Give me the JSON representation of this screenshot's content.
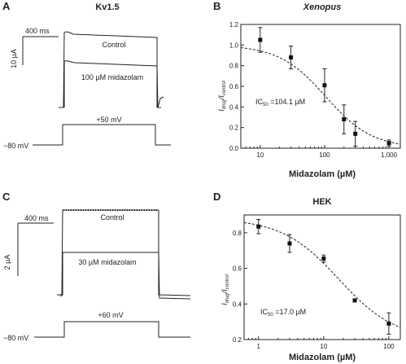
{
  "panels": {
    "A": {
      "letter": "A",
      "title": "Kv1.5",
      "time_scale": "400 ms",
      "current_scale": "10 µA",
      "trace_control": "Control",
      "trace_drug": "100 µM midazolam",
      "step_voltage": "+50 mV",
      "holding_voltage": "−80 mV"
    },
    "C": {
      "letter": "C",
      "time_scale": "400 ms",
      "current_scale": "2 µA",
      "trace_control": "Control",
      "trace_drug": "30 µM midazolam",
      "step_voltage": "+60 mV",
      "holding_voltage": "−80 mV"
    }
  },
  "chart_data": [
    {
      "panel": "B",
      "type": "scatter",
      "title": "Xenopus",
      "xlabel": "Midazolam (µM)",
      "ylabel_main": "I",
      "ylabel_sub1": "drug",
      "ylabel_sep": "/I",
      "ylabel_sub2": "control",
      "xscale": "log",
      "xlim": [
        5,
        1500
      ],
      "ylim": [
        0,
        1.2
      ],
      "xticks": [
        10,
        100,
        1000
      ],
      "xtick_labels": [
        "10",
        "100",
        "1,000"
      ],
      "yticks": [
        0.0,
        0.2,
        0.4,
        0.6,
        0.8,
        1.0,
        1.2
      ],
      "ytick_labels": [
        "0.0",
        "0.2",
        "0.4",
        "0.6",
        "0.8",
        "1.0",
        "1.2"
      ],
      "points": [
        {
          "x": 10,
          "y": 1.05,
          "err": 0.12
        },
        {
          "x": 30,
          "y": 0.88,
          "err": 0.11
        },
        {
          "x": 100,
          "y": 0.61,
          "err": 0.16
        },
        {
          "x": 200,
          "y": 0.28,
          "err": 0.14
        },
        {
          "x": 300,
          "y": 0.14,
          "err": 0.12
        },
        {
          "x": 1000,
          "y": 0.05,
          "err": 0.03
        }
      ],
      "fit": {
        "ic50": 104.1,
        "hill": 1.2
      },
      "annotation_main": "IC",
      "annotation_sub": "50",
      "annotation_rest": " =104.1 µM"
    },
    {
      "panel": "D",
      "type": "scatter",
      "title": "HEK",
      "xlabel": "Midazolam (µM)",
      "ylabel_main": "I",
      "ylabel_sub1": "drug",
      "ylabel_sep": "/I",
      "ylabel_sub2": "control",
      "xscale": "log",
      "xlim": [
        0.6,
        150
      ],
      "ylim": [
        0.2,
        0.9
      ],
      "xticks": [
        1,
        10,
        100
      ],
      "xtick_labels": [
        "1",
        "10",
        "100"
      ],
      "yticks": [
        0.2,
        0.4,
        0.6,
        0.8
      ],
      "ytick_labels": [
        "0.2",
        "0.4",
        "0.6",
        "0.8"
      ],
      "points": [
        {
          "x": 1,
          "y": 0.835,
          "err": 0.04
        },
        {
          "x": 3,
          "y": 0.74,
          "err": 0.05
        },
        {
          "x": 10,
          "y": 0.655,
          "err": 0.02
        },
        {
          "x": 30,
          "y": 0.42,
          "err": 0.008
        },
        {
          "x": 100,
          "y": 0.29,
          "err": 0.06
        }
      ],
      "fit": {
        "ic50": 17.0,
        "hill": 1.0,
        "bottom": 0.2,
        "top": 0.88
      },
      "annotation_main": "IC",
      "annotation_sub": "50",
      "annotation_rest": " =17.0 µM"
    }
  ]
}
